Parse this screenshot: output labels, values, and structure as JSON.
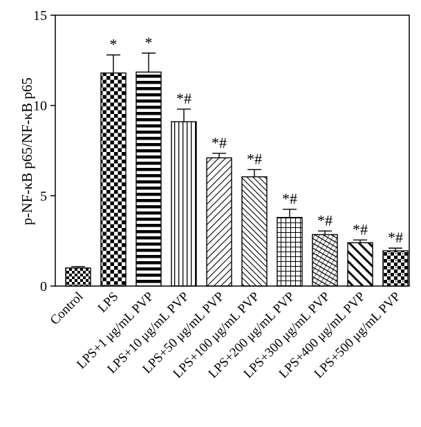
{
  "chart_data": {
    "type": "bar",
    "title": "",
    "xlabel": "",
    "ylabel": "p-NF-κB p65/NF-κB p65",
    "ylim": [
      0,
      15
    ],
    "yticks": [
      0,
      5,
      10,
      15
    ],
    "grid": false,
    "categories": [
      "Control",
      "LPS",
      "LPS+1 μg/mL PVP",
      "LPS+10 μg/mL PVP",
      "LPS+50 μg/mL PVP",
      "LPS+100 μg/mL PVP",
      "LPS+200 μg/mL PVP",
      "LPS+300 μg/mL PVP",
      "LPS+400 μg/mL PVP",
      "LPS+500 μg/mL PVP"
    ],
    "values": [
      1.0,
      11.8,
      11.85,
      9.1,
      7.1,
      6.05,
      3.8,
      2.85,
      2.4,
      1.95
    ],
    "errors": [
      0.08,
      1.0,
      1.05,
      0.7,
      0.25,
      0.4,
      0.45,
      0.2,
      0.15,
      0.15
    ],
    "significance": [
      "",
      "*",
      "*",
      "*#",
      "*#",
      "*#",
      "*#",
      "*#",
      "*#",
      "*#"
    ],
    "patterns": [
      "checker-small",
      "checker-large",
      "horizontal-lines",
      "vertical-lines",
      "diagonal-fine",
      "diagonal-dense",
      "grid",
      "crosshatch-diagonal",
      "diagonal-wide",
      "checker-offset"
    ],
    "bar_color": "#000000",
    "background_color": "#ffffff"
  }
}
